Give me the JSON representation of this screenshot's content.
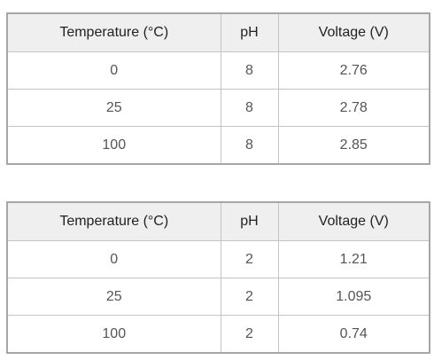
{
  "tables": [
    {
      "header": [
        "Temperature (°C)",
        "pH",
        "Voltage (V)"
      ],
      "rows": [
        [
          "0",
          "8",
          "2.76"
        ],
        [
          "25",
          "8",
          "2.78"
        ],
        [
          "100",
          "8",
          "2.85"
        ]
      ]
    },
    {
      "header": [
        "Temperature (°C)",
        "pH",
        "Voltage (V)"
      ],
      "rows": [
        [
          "0",
          "2",
          "1.21"
        ],
        [
          "25",
          "2",
          "1.095"
        ],
        [
          "100",
          "2",
          "0.74"
        ]
      ]
    }
  ]
}
